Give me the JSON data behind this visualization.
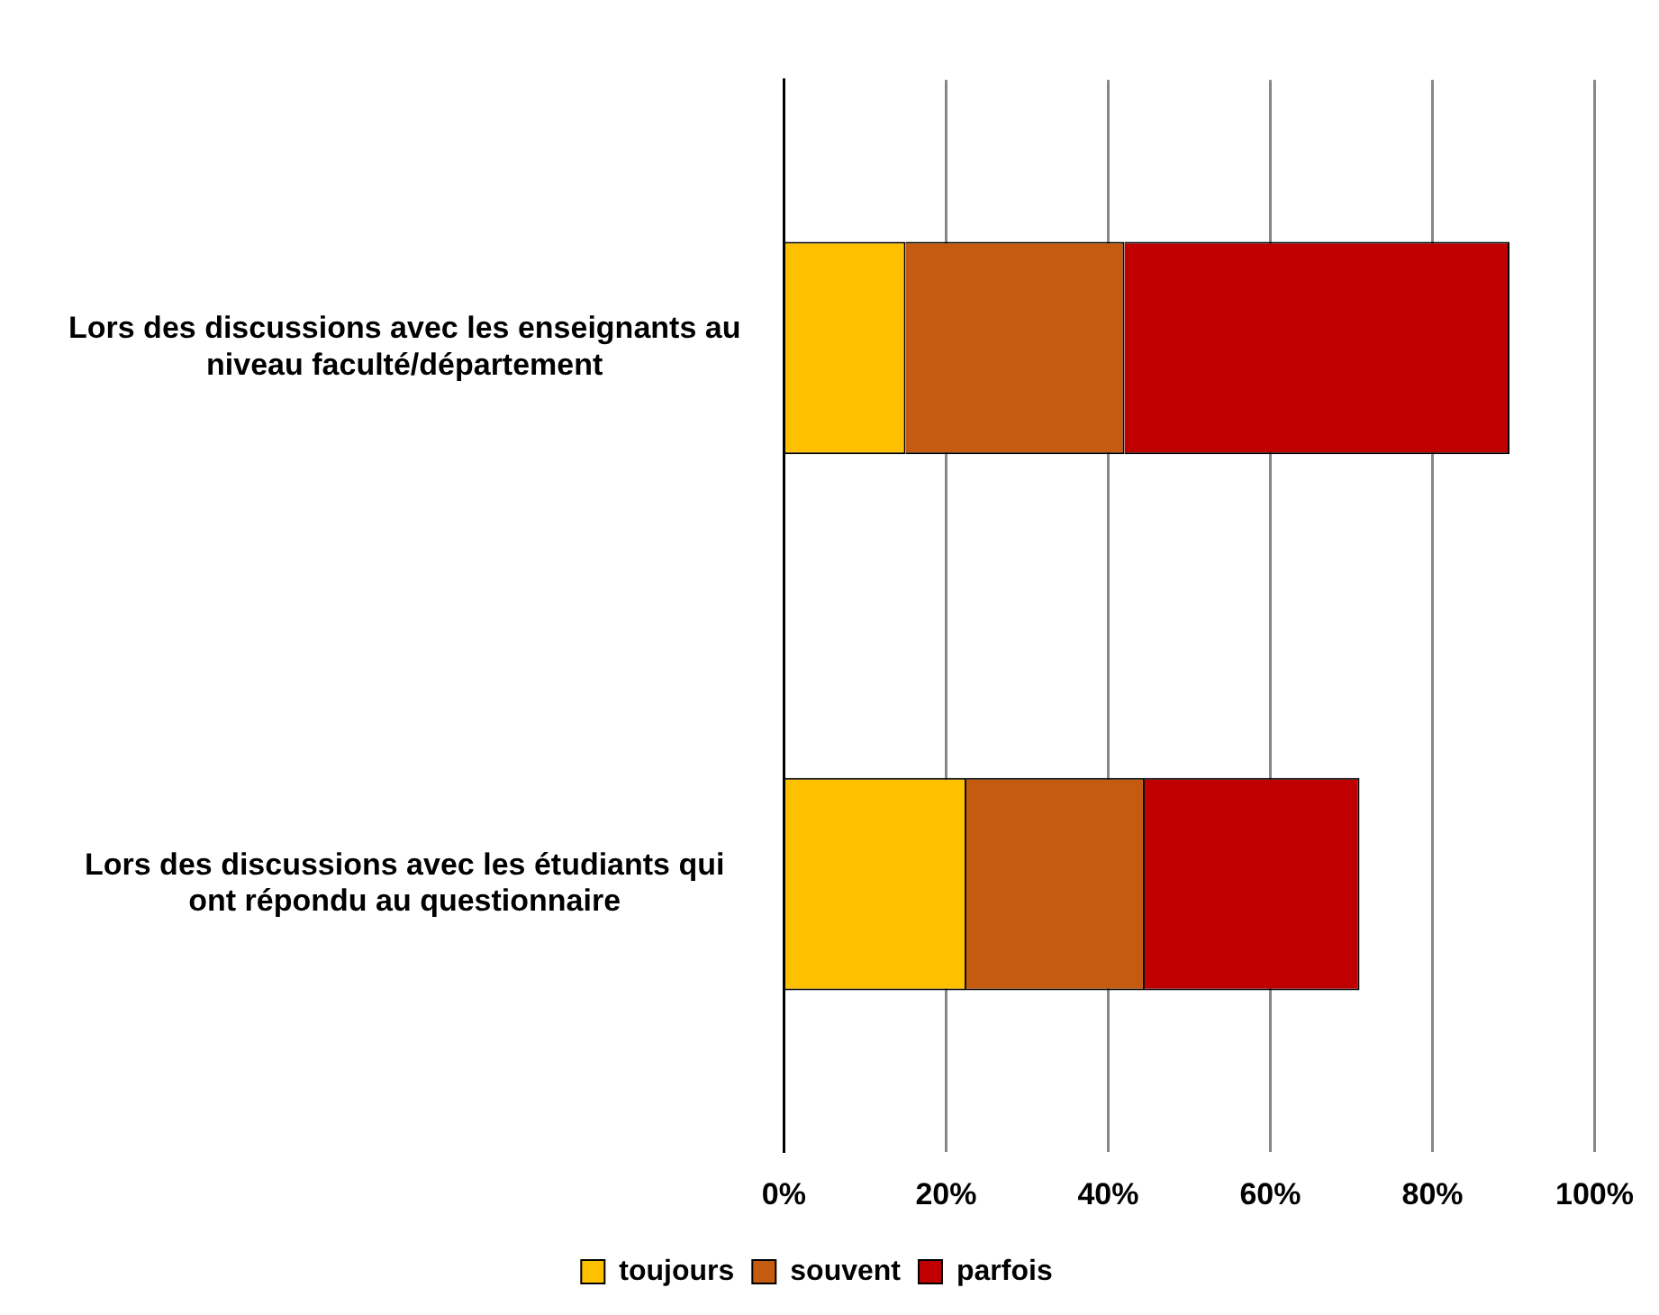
{
  "chart_data": {
    "type": "bar",
    "orientation": "horizontal",
    "stacked": true,
    "categories": [
      "Lors des discussions avec les enseignants au niveau faculté/département",
      "Lors des discussions avec les étudiants qui ont répondu au questionnaire"
    ],
    "series": [
      {
        "name": "toujours",
        "color": "#ffc000",
        "values": [
          15,
          22.5
        ]
      },
      {
        "name": "souvent",
        "color": "#c55a11",
        "values": [
          27,
          22
        ]
      },
      {
        "name": "parfois",
        "color": "#c00000",
        "values": [
          47.5,
          26.5
        ]
      }
    ],
    "xlim": [
      0,
      100
    ],
    "xticks": [
      {
        "value": 0,
        "label": "0%"
      },
      {
        "value": 20,
        "label": "20%"
      },
      {
        "value": 40,
        "label": "40%"
      },
      {
        "value": 60,
        "label": "60%"
      },
      {
        "value": 80,
        "label": "80%"
      },
      {
        "value": 100,
        "label": "100%"
      }
    ],
    "grid": "x",
    "legend": "bottom"
  }
}
